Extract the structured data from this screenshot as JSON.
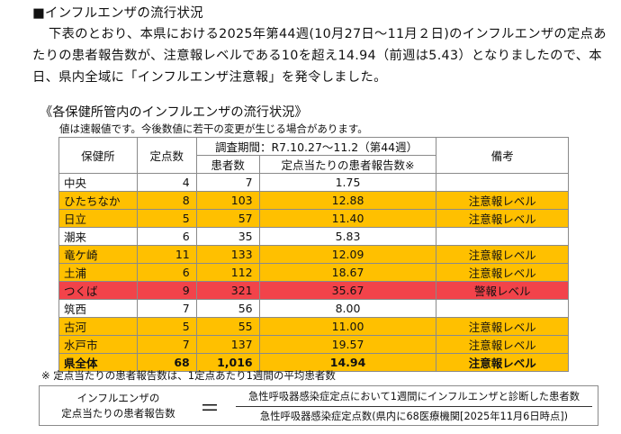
{
  "section_heading": "■インフルエンザの流行状況",
  "paragraph": "下表のとおり、本県における2025年第44週(10月27日～11月２日)のインフルエンザの定点あたりの患者報告数が、注意報レベルである10を超え14.94（前週は5.43）となりましたので、本日、県内全域に「インフルエンザ注意報」を発令しました。",
  "table_section": {
    "title": "《各保健所管内のインフルエンザの流行状況》",
    "note": "値は速報値です。今後数値に若干の変更が生じる場合があります。",
    "headers": {
      "office": "保健所",
      "sentinels": "定点数",
      "period": "調査期間：R7.10.27～11.2（第44週）",
      "patients": "患者数",
      "per_sentinel": "定点当たりの患者報告数※",
      "remarks": "備考"
    },
    "rows": [
      {
        "office": "中央",
        "sentinels": "4",
        "patients": "7",
        "rate": "1.75",
        "remark": "",
        "level": "none"
      },
      {
        "office": "ひたちなか",
        "sentinels": "8",
        "patients": "103",
        "rate": "12.88",
        "remark": "注意報レベル",
        "level": "caution"
      },
      {
        "office": "日立",
        "sentinels": "5",
        "patients": "57",
        "rate": "11.40",
        "remark": "注意報レベル",
        "level": "caution"
      },
      {
        "office": "潮来",
        "sentinels": "6",
        "patients": "35",
        "rate": "5.83",
        "remark": "",
        "level": "none"
      },
      {
        "office": "竜ケ崎",
        "sentinels": "11",
        "patients": "133",
        "rate": "12.09",
        "remark": "注意報レベル",
        "level": "caution"
      },
      {
        "office": "土浦",
        "sentinels": "6",
        "patients": "112",
        "rate": "18.67",
        "remark": "注意報レベル",
        "level": "caution"
      },
      {
        "office": "つくば",
        "sentinels": "9",
        "patients": "321",
        "rate": "35.67",
        "remark": "警報レベル",
        "level": "warning"
      },
      {
        "office": "筑西",
        "sentinels": "7",
        "patients": "56",
        "rate": "8.00",
        "remark": "",
        "level": "none"
      },
      {
        "office": "古河",
        "sentinels": "5",
        "patients": "55",
        "rate": "11.00",
        "remark": "注意報レベル",
        "level": "caution"
      },
      {
        "office": "水戸市",
        "sentinels": "7",
        "patients": "137",
        "rate": "19.57",
        "remark": "注意報レベル",
        "level": "caution"
      }
    ],
    "total": {
      "office": "県全体",
      "sentinels": "68",
      "patients": "1,016",
      "rate": "14.94",
      "remark": "注意報レベル",
      "level": "caution"
    },
    "colors": {
      "caution": "#ffc000",
      "warning": "#f2434a",
      "none": "#ffffff"
    }
  },
  "footnote": "※ 定点当たりの患者報告数は、1定点あたり1週間の平均患者数",
  "formula": {
    "lhs_line1": "インフルエンザの",
    "lhs_line2": "定点当たりの患者報告数",
    "equals": "＝",
    "numerator": "急性呼吸器感染症定点において1週間にインフルエンザと診断した患者数",
    "denominator": "急性呼吸器感染症定点数(県内に68医療機関[2025年11月6日時点])"
  }
}
